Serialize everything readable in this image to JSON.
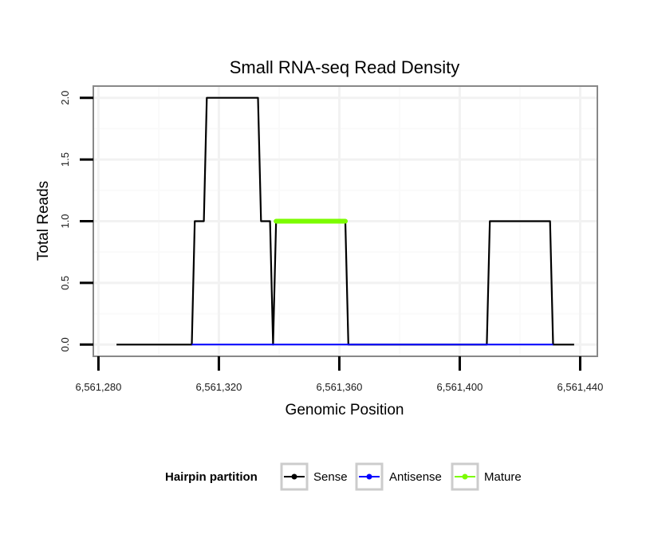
{
  "chart_data": {
    "type": "line",
    "title": "Small RNA-seq Read Density",
    "xlabel": "Genomic Position",
    "ylabel": "Total Reads",
    "xlim": [
      6561278.3,
      6561445.7
    ],
    "ylim": [
      -0.095,
      2.095
    ],
    "x_ticks": [
      6561280,
      6561320,
      6561360,
      6561400,
      6561440
    ],
    "x_tick_labels": [
      "6,561,280",
      "6,561,320",
      "6,561,360",
      "6,561,400",
      "6,561,440"
    ],
    "y_ticks": [
      0,
      0.5,
      1,
      1.5,
      2
    ],
    "y_tick_labels": [
      "0.0",
      "0.5",
      "1.0",
      "1.5",
      "2.0"
    ],
    "grid": true,
    "legend_position": "bottom",
    "legend_title": "Hairpin partition",
    "series": [
      {
        "name": "Sense",
        "color": "#000000",
        "x": [
          6561286,
          6561311,
          6561312,
          6561315,
          6561316,
          6561333,
          6561334,
          6561337,
          6561338,
          6561339,
          6561362,
          6561363,
          6561409,
          6561410,
          6561430,
          6561431,
          6561438
        ],
        "values": [
          0,
          0,
          1,
          1,
          2,
          2,
          1,
          1,
          0,
          1,
          1,
          0,
          0,
          1,
          1,
          0,
          0
        ]
      },
      {
        "name": "Antisense",
        "color": "#0000ff",
        "x": [
          6561311,
          6561338,
          6561363,
          6561409,
          6561410,
          6561431
        ],
        "values": [
          0,
          0,
          0,
          0,
          0,
          0
        ]
      },
      {
        "name": "Mature",
        "color": "#7cfc00",
        "x": [
          6561339,
          6561362
        ],
        "values": [
          1,
          1
        ]
      }
    ]
  }
}
